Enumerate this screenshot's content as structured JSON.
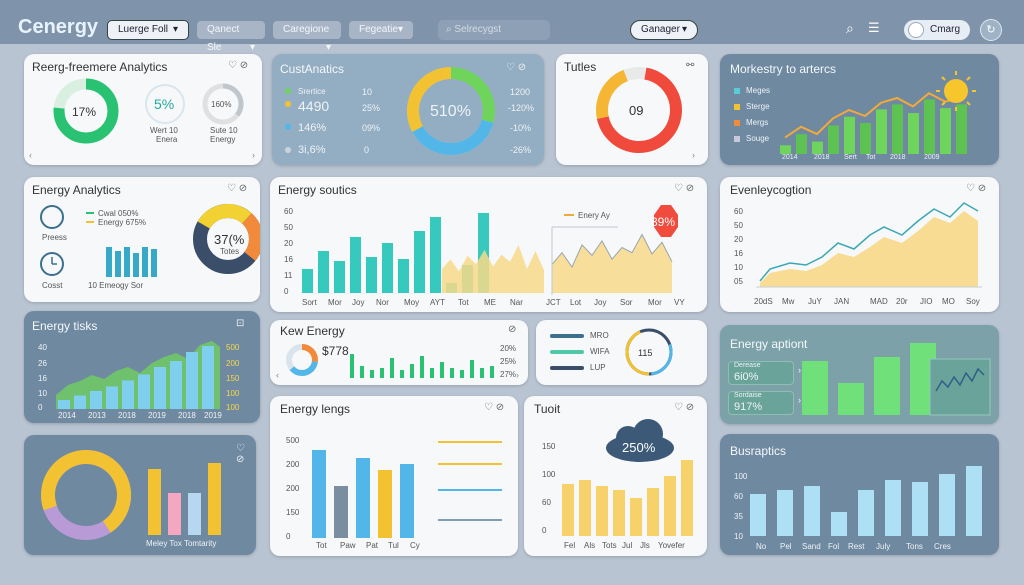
{
  "header": {
    "logo": "Cenergy",
    "dropdown1": "Luerge Foll",
    "dropdown2": "Qanect Sle",
    "dropdown3": "Caregione",
    "dropdown4": "Fegeatie",
    "search_placeholder": "Selrecygst",
    "dropdown5": "Ganager",
    "user_toggle": "Cmarg"
  },
  "cards": {
    "c1": {
      "title": "Reerg-freemere Analytics",
      "donut1": "17%",
      "donut2": "5%",
      "donut2_label1": "Wert 10",
      "donut2_label2": "Enera",
      "donut3": "160%",
      "donut3_label1": "Sute 10",
      "donut3_label2": "Energy"
    },
    "c2": {
      "title": "CustAnatics",
      "rows": [
        {
          "label": "Srertice",
          "a": "10",
          "b": "1200"
        },
        {
          "label": "4490",
          "a": "25%",
          "b": "-120%"
        },
        {
          "label": "146%",
          "a": "09%",
          "b": "-10%"
        },
        {
          "label": "3i,6%",
          "a": "0",
          "b": "-26%"
        }
      ],
      "center": "510%"
    },
    "c3": {
      "title": "Tutles",
      "center": "09"
    },
    "c4": {
      "title": "Morkestry to artercs",
      "legend": [
        "Meges",
        "Sterge",
        "Mergs",
        "Souge"
      ],
      "x_labels": [
        "2014",
        "2018",
        "Sert",
        "Tot",
        "2018",
        "2009"
      ]
    },
    "c5": {
      "title": "Energy Analytics",
      "line1": "Cwal 050%",
      "line2": "Energy 675%",
      "left1": "Preess",
      "left2": "Cosst",
      "footer": "10 Emeogy Sor",
      "center": "37(%",
      "center_sub": "Totes"
    },
    "c6": {
      "title": "Energy soutics",
      "y_labels": [
        "60",
        "50",
        "20",
        "16",
        "11",
        "0"
      ],
      "x_labels": [
        "Sort",
        "Mor",
        "Joy",
        "Nor",
        "Moy",
        "AYT",
        "Tot",
        "ME",
        "Nar",
        "JCT",
        "Lot",
        "Joy",
        "Sor",
        "Mor",
        "VY"
      ],
      "legend": "Enery Ay",
      "badge": "39%"
    },
    "c7": {
      "title": "Evenleycogtion",
      "y_labels": [
        "60",
        "50",
        "20",
        "16",
        "10",
        "05"
      ],
      "x_labels": [
        "20dS",
        "Mw",
        "JuY",
        "JAN",
        "MAD",
        "20r",
        "JIO",
        "MO",
        "Soy"
      ]
    },
    "c8": {
      "title": "Energy tisks",
      "y_labels": [
        "40",
        "26",
        "16",
        "10",
        "0"
      ],
      "y2_labels": [
        "500",
        "200",
        "150",
        "100",
        "100"
      ],
      "x_labels": [
        "2014",
        "2013",
        "2018",
        "2019",
        "2018",
        "2019"
      ]
    },
    "c9": {
      "title": "Kew Energy",
      "value": "$778",
      "r1": "20%",
      "r2": "25%",
      "r3": "27%"
    },
    "c10": {
      "legend": [
        "MRO",
        "WIFA",
        "LUP"
      ],
      "center": "115"
    },
    "c11": {
      "title": "Energy aptiont",
      "box1_sub": "Derease",
      "box1": "6i0%",
      "box2_sub": "Sordaise",
      "box2": "917%"
    },
    "c12": {
      "footer": "Meley Tox Tomtarity"
    },
    "c13": {
      "title": "Energy lengs",
      "y_labels": [
        "500",
        "200",
        "200",
        "150",
        "0"
      ],
      "x_labels": [
        "Tot",
        "Paw",
        "Pat",
        "Tul",
        "Cy"
      ]
    },
    "c14": {
      "title": "Tuoit",
      "bubble": "250%",
      "y_labels": [
        "150",
        "100",
        "60",
        "0"
      ],
      "x_labels": [
        "Fel",
        "Als",
        "Tots",
        "Jul",
        "Jls",
        "Yovefer"
      ]
    },
    "c15": {
      "title": "Busraptics",
      "y_labels": [
        "100",
        "60",
        "35",
        "10"
      ],
      "x_labels": [
        "No",
        "Pel",
        "Sand",
        "Fol",
        "Rest",
        "July",
        "Tons",
        "Cres"
      ]
    }
  },
  "charts": {
    "c4": [
      14,
      32,
      20,
      46,
      60,
      50,
      72,
      80,
      66,
      88,
      74,
      80
    ],
    "c5": [
      30,
      26,
      30,
      24,
      30,
      28
    ],
    "c6a": [
      24,
      42,
      32,
      56,
      36,
      50,
      34,
      62,
      76,
      10,
      28,
      80
    ],
    "c6b": [
      40,
      56,
      36,
      62,
      48,
      72,
      44,
      64,
      52,
      80,
      40,
      70,
      38
    ],
    "c6c": [
      44,
      62,
      40,
      74,
      58,
      80,
      52,
      70,
      62,
      90,
      60,
      78,
      48
    ],
    "c8": [
      12,
      18,
      24,
      30,
      38,
      46,
      56,
      64,
      76,
      84
    ],
    "c9": [
      24,
      12,
      8,
      10,
      20,
      8,
      14,
      22,
      10,
      16,
      10,
      8,
      18,
      10,
      12
    ],
    "c11": [
      54,
      32,
      58,
      72
    ],
    "c12": [
      66,
      42,
      42,
      72
    ],
    "c13": [
      88,
      52,
      80,
      68,
      74
    ],
    "c14": [
      52,
      56,
      50,
      46,
      38,
      48,
      60,
      76
    ],
    "c15": [
      42,
      46,
      50,
      24,
      46,
      56,
      54,
      62,
      70
    ]
  }
}
